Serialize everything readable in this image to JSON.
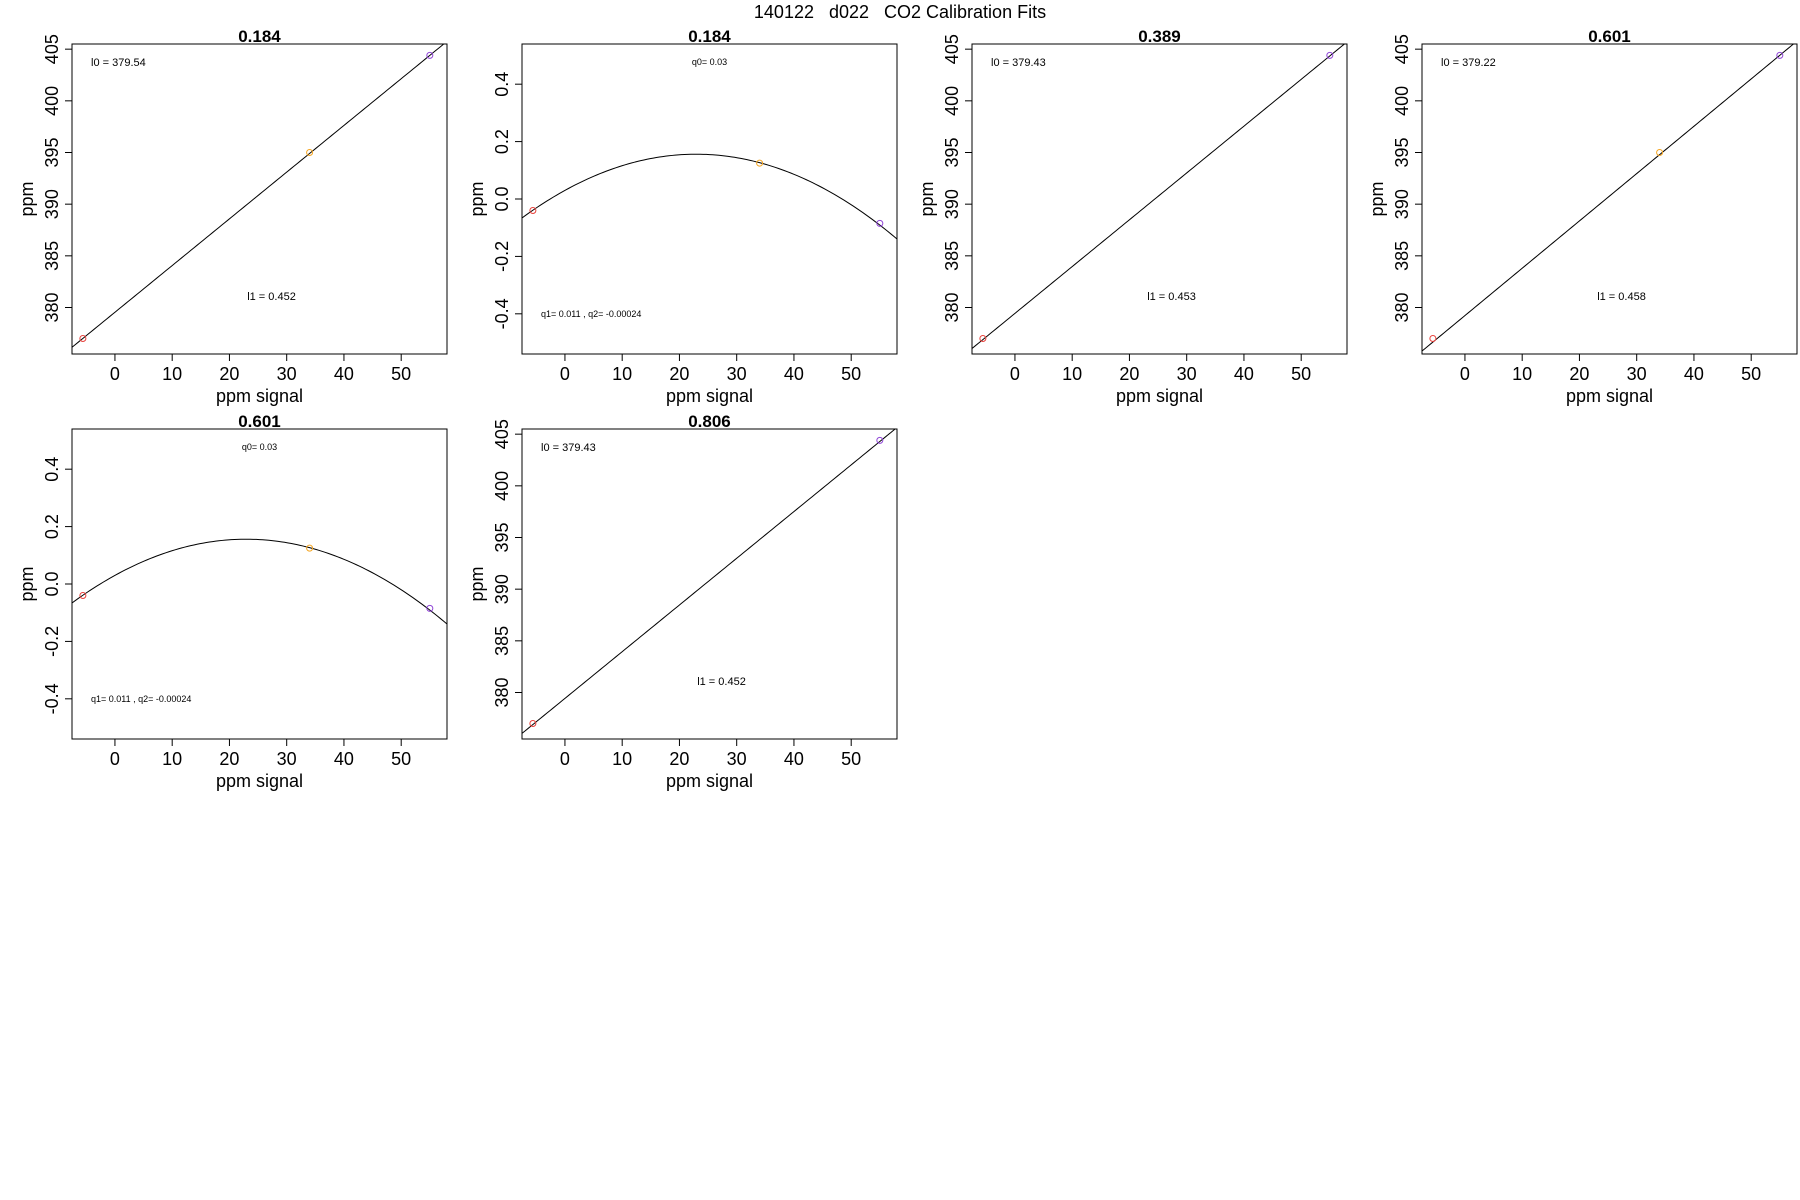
{
  "figure": {
    "title": "140122   d022   CO2 Calibration Fits"
  },
  "chart_data": [
    {
      "type": "scatter",
      "title": "0.184",
      "xlabel": "ppm signal",
      "ylabel": "ppm",
      "xlim": [
        -7.5,
        58
      ],
      "ylim": [
        375.5,
        405.5
      ],
      "xticks": [
        0,
        10,
        20,
        30,
        40,
        50
      ],
      "yticks": [
        380,
        385,
        390,
        395,
        400,
        405
      ],
      "fit": {
        "kind": "linear",
        "intercept": 379.54,
        "slope": 0.452
      },
      "annotations": {
        "top": "l0 =  379.54",
        "bottom": "l1 =  0.452"
      },
      "points": [
        {
          "x": -5.6,
          "y": 377.0,
          "color": "#e8413b"
        },
        {
          "x": 34,
          "y": 395.0,
          "color": "#f5a623"
        },
        {
          "x": 55,
          "y": 404.4,
          "color": "#8e44d6"
        }
      ]
    },
    {
      "type": "scatter",
      "title": "0.184",
      "xlabel": "ppm signal",
      "ylabel": "ppm",
      "xlim": [
        -7.5,
        58
      ],
      "ylim": [
        -0.54,
        0.54
      ],
      "xticks": [
        0,
        10,
        20,
        30,
        40,
        50
      ],
      "yticks": [
        -0.4,
        -0.2,
        0.0,
        0.2,
        0.4
      ],
      "fit": {
        "kind": "quadratic",
        "q0": 0.03,
        "q1": 0.011,
        "q2": -0.00024
      },
      "annotations": {
        "top": "q0= 0.03",
        "bottom": "q1= 0.011 , q2= -0.00024"
      },
      "points": [
        {
          "x": -5.6,
          "y": -0.04,
          "color": "#e8413b"
        },
        {
          "x": 34,
          "y": 0.125,
          "color": "#f5a623"
        },
        {
          "x": 55,
          "y": -0.085,
          "color": "#8e44d6"
        }
      ]
    },
    {
      "type": "scatter",
      "title": "0.389",
      "xlabel": "ppm signal",
      "ylabel": "ppm",
      "xlim": [
        -7.5,
        58
      ],
      "ylim": [
        375.5,
        405.5
      ],
      "xticks": [
        0,
        10,
        20,
        30,
        40,
        50
      ],
      "yticks": [
        380,
        385,
        390,
        395,
        400,
        405
      ],
      "fit": {
        "kind": "linear",
        "intercept": 379.43,
        "slope": 0.453
      },
      "annotations": {
        "top": "l0 =  379.43",
        "bottom": "l1 =  0.453"
      },
      "points": [
        {
          "x": -5.6,
          "y": 377.0,
          "color": "#e8413b"
        },
        {
          "x": 55,
          "y": 404.4,
          "color": "#8e44d6"
        }
      ]
    },
    {
      "type": "scatter",
      "title": "0.601",
      "xlabel": "ppm signal",
      "ylabel": "ppm",
      "xlim": [
        -7.5,
        58
      ],
      "ylim": [
        375.5,
        405.5
      ],
      "xticks": [
        0,
        10,
        20,
        30,
        40,
        50
      ],
      "yticks": [
        380,
        385,
        390,
        395,
        400,
        405
      ],
      "fit": {
        "kind": "linear",
        "intercept": 379.22,
        "slope": 0.458
      },
      "annotations": {
        "top": "l0 =  379.22",
        "bottom": "l1 =  0.458"
      },
      "points": [
        {
          "x": -5.6,
          "y": 377.0,
          "color": "#e8413b"
        },
        {
          "x": 34,
          "y": 395.0,
          "color": "#f5a623"
        },
        {
          "x": 55,
          "y": 404.4,
          "color": "#8e44d6"
        }
      ]
    },
    {
      "type": "scatter",
      "title": "0.601",
      "xlabel": "ppm signal",
      "ylabel": "ppm",
      "xlim": [
        -7.5,
        58
      ],
      "ylim": [
        -0.54,
        0.54
      ],
      "xticks": [
        0,
        10,
        20,
        30,
        40,
        50
      ],
      "yticks": [
        -0.4,
        -0.2,
        0.0,
        0.2,
        0.4
      ],
      "fit": {
        "kind": "quadratic",
        "q0": 0.03,
        "q1": 0.011,
        "q2": -0.00024
      },
      "annotations": {
        "top": "q0= 0.03",
        "bottom": "q1= 0.011 , q2= -0.00024"
      },
      "points": [
        {
          "x": -5.6,
          "y": -0.04,
          "color": "#e8413b"
        },
        {
          "x": 34,
          "y": 0.125,
          "color": "#f5a623"
        },
        {
          "x": 55,
          "y": -0.085,
          "color": "#8e44d6"
        }
      ]
    },
    {
      "type": "scatter",
      "title": "0.806",
      "xlabel": "ppm signal",
      "ylabel": "ppm",
      "xlim": [
        -7.5,
        58
      ],
      "ylim": [
        375.5,
        405.5
      ],
      "xticks": [
        0,
        10,
        20,
        30,
        40,
        50
      ],
      "yticks": [
        380,
        385,
        390,
        395,
        400,
        405
      ],
      "fit": {
        "kind": "linear",
        "intercept": 379.43,
        "slope": 0.452
      },
      "annotations": {
        "top": "l0 =  379.43",
        "bottom": "l1 =  0.452"
      },
      "points": [
        {
          "x": -5.6,
          "y": 377.0,
          "color": "#e8413b"
        },
        {
          "x": 55,
          "y": 404.4,
          "color": "#8e44d6"
        }
      ]
    }
  ]
}
